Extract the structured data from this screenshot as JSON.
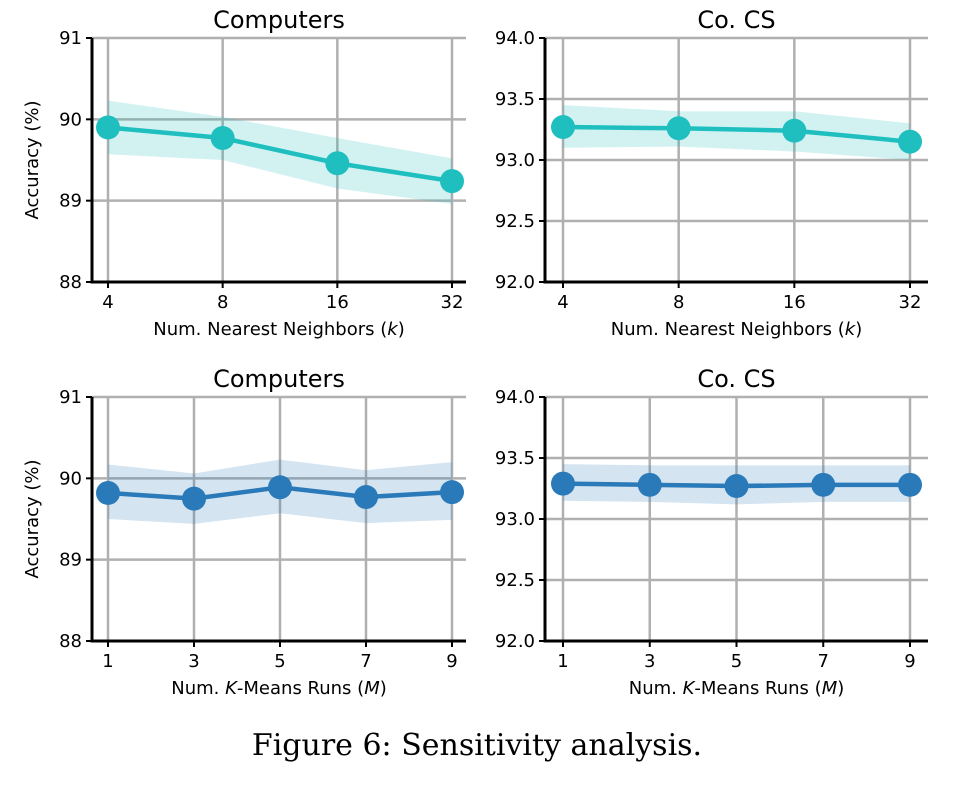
{
  "caption": "Figure 6: Sensitivity analysis.",
  "chart_data": [
    {
      "type": "line",
      "title": "Computers",
      "xlabel": "Num. Nearest Neighbors (k)",
      "xlabel_parts": [
        "Num. Nearest Neighbors (",
        "k",
        ")"
      ],
      "ylabel": "Accuracy (%)",
      "categories": [
        "4",
        "8",
        "16",
        "32"
      ],
      "yticks": [
        "88",
        "89",
        "90",
        "91"
      ],
      "ylim": [
        88,
        91
      ],
      "color": "#1fbfbf",
      "grid": true,
      "series": [
        {
          "values": [
            89.9,
            89.77,
            89.46,
            89.24
          ],
          "lower": [
            89.57,
            89.5,
            89.15,
            88.96
          ],
          "upper": [
            90.23,
            90.03,
            89.77,
            89.52
          ]
        }
      ]
    },
    {
      "type": "line",
      "title": "Co. CS",
      "xlabel": "Num. Nearest Neighbors (k)",
      "xlabel_parts": [
        "Num. Nearest Neighbors (",
        "k",
        ")"
      ],
      "ylabel": "",
      "categories": [
        "4",
        "8",
        "16",
        "32"
      ],
      "yticks": [
        "92.0",
        "92.5",
        "93.0",
        "93.5",
        "94.0"
      ],
      "ylim": [
        92.0,
        94.0
      ],
      "color": "#1fbfbf",
      "grid": true,
      "series": [
        {
          "values": [
            93.27,
            93.26,
            93.24,
            93.15
          ],
          "lower": [
            93.1,
            93.11,
            93.07,
            93.0
          ],
          "upper": [
            93.45,
            93.4,
            93.4,
            93.3
          ]
        }
      ]
    },
    {
      "type": "line",
      "title": "Computers",
      "xlabel": "Num. K-Means Runs (M)",
      "xlabel_parts": [
        "Num. ",
        "K",
        "-Means Runs (",
        "M",
        ")"
      ],
      "ylabel": "Accuracy (%)",
      "categories": [
        "1",
        "3",
        "5",
        "7",
        "9"
      ],
      "yticks": [
        "88",
        "89",
        "90",
        "91"
      ],
      "ylim": [
        88,
        91
      ],
      "color": "#2a7ab9",
      "grid": true,
      "series": [
        {
          "values": [
            89.82,
            89.75,
            89.89,
            89.77,
            89.83
          ],
          "lower": [
            89.5,
            89.44,
            89.57,
            89.45,
            89.49
          ],
          "upper": [
            90.17,
            90.06,
            90.23,
            90.1,
            90.2
          ]
        }
      ]
    },
    {
      "type": "line",
      "title": "Co. CS",
      "xlabel": "Num. K-Means Runs (M)",
      "xlabel_parts": [
        "Num. ",
        "K",
        "-Means Runs (",
        "M",
        ")"
      ],
      "ylabel": "",
      "categories": [
        "1",
        "3",
        "5",
        "7",
        "9"
      ],
      "yticks": [
        "92.0",
        "92.5",
        "93.0",
        "93.5",
        "94.0"
      ],
      "ylim": [
        92.0,
        94.0
      ],
      "color": "#2a7ab9",
      "grid": true,
      "series": [
        {
          "values": [
            93.29,
            93.28,
            93.27,
            93.28,
            93.28
          ],
          "lower": [
            93.15,
            93.14,
            93.12,
            93.14,
            93.14
          ],
          "upper": [
            93.45,
            93.44,
            93.44,
            93.44,
            93.44
          ]
        }
      ]
    }
  ]
}
